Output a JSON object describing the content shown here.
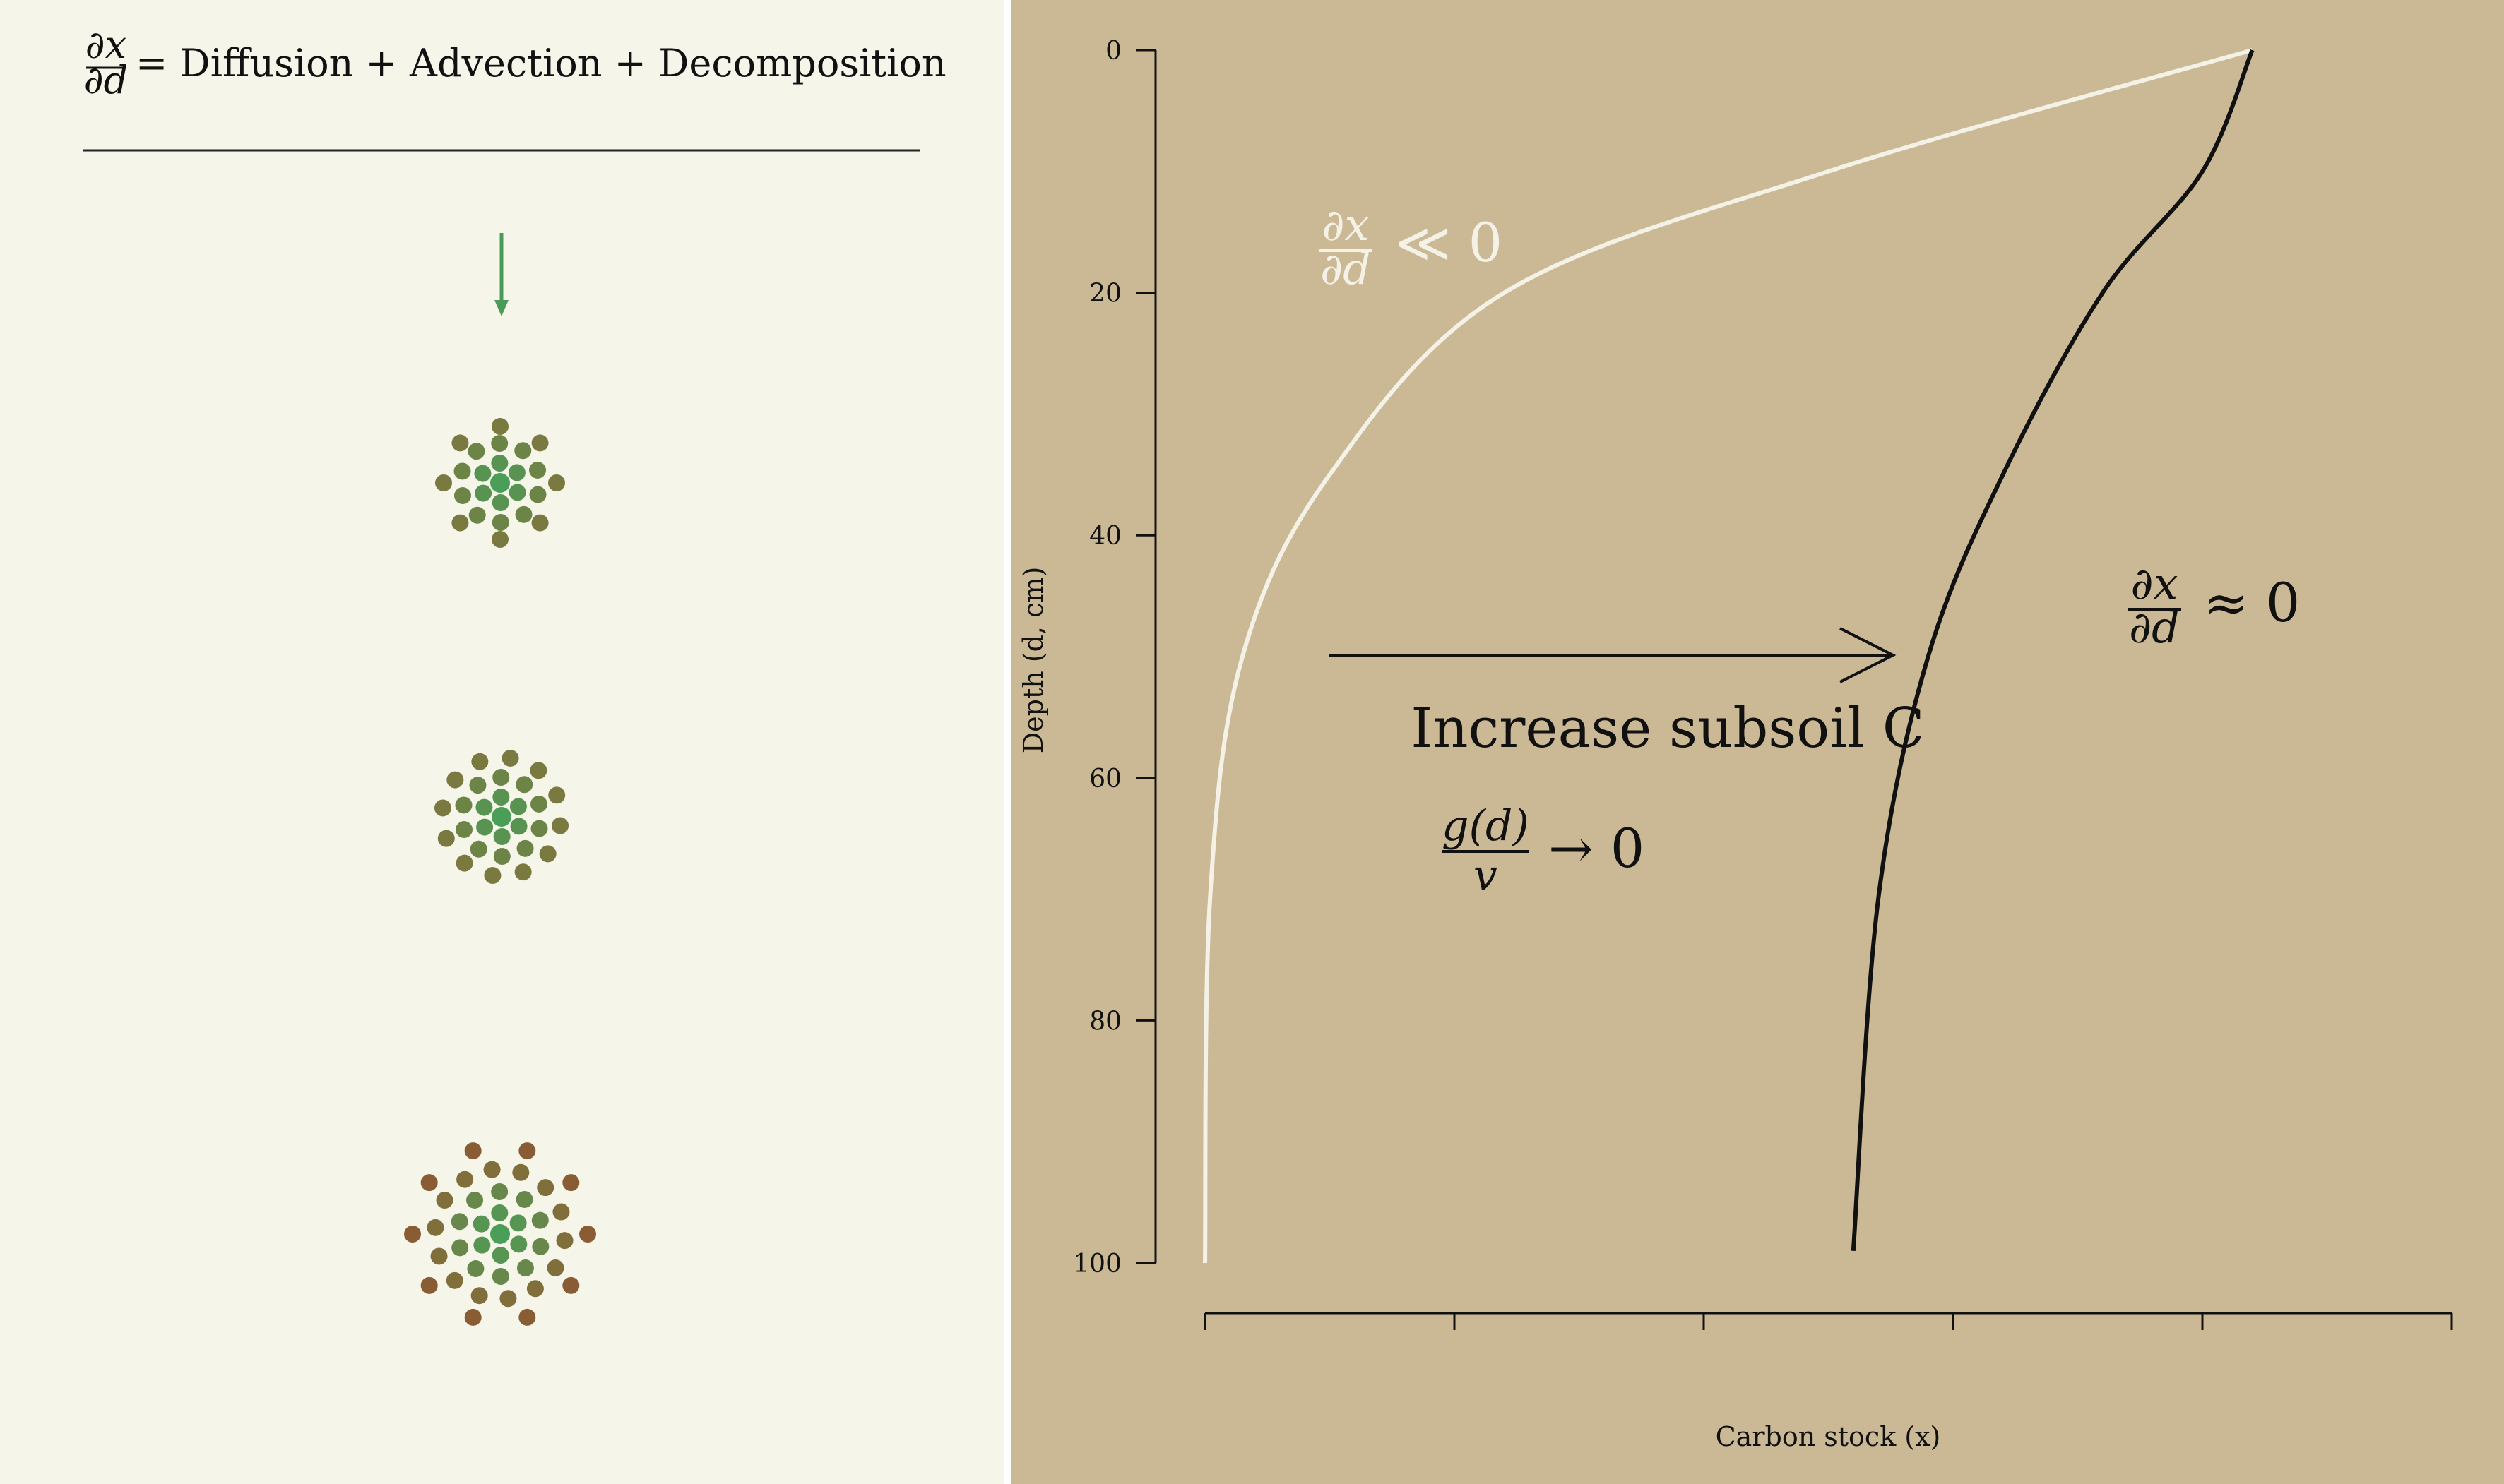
{
  "left_panel": {
    "equation": {
      "frac_num": "∂x",
      "frac_den": "∂d",
      "rhs": "= Diffusion + Advection + Decomposition"
    },
    "arrow_color": "#4a9a58",
    "dot_colors": {
      "green": "#4a9e58",
      "olive": "#7a7a40",
      "brown": "#8a5c34"
    }
  },
  "chart_data": {
    "type": "line",
    "xlabel": "Carbon stock (x)",
    "ylabel": "Depth (d, cm)",
    "yticks": [
      "0",
      "20",
      "40",
      "60",
      "80",
      "100"
    ],
    "ylim": [
      0,
      100
    ],
    "y_inverted": true,
    "xticks": [
      "",
      "",
      "",
      "",
      "",
      ""
    ],
    "series": [
      {
        "color": "#f4f1e6",
        "points": [
          [
            4.2,
            0
          ],
          [
            2.5,
            10
          ],
          [
            1.2,
            20
          ],
          [
            0.5,
            35
          ],
          [
            0.15,
            50
          ],
          [
            0.02,
            70
          ],
          [
            0.0,
            100
          ]
        ]
      },
      {
        "color": "#111111",
        "points": [
          [
            4.2,
            0
          ],
          [
            4.0,
            10
          ],
          [
            3.6,
            20
          ],
          [
            3.2,
            35
          ],
          [
            2.9,
            50
          ],
          [
            2.7,
            70
          ],
          [
            2.6,
            99
          ]
        ]
      }
    ],
    "annotations": {
      "white_label": {
        "num": "∂x",
        "den": "∂d",
        "rel": "≪ 0"
      },
      "black_label": {
        "num": "∂x",
        "den": "∂d",
        "rel": "≈ 0"
      },
      "arrow_text": "Increase subsoil C",
      "g_label": {
        "num": "g(d)",
        "den": "v",
        "rel": "→ 0"
      }
    }
  }
}
